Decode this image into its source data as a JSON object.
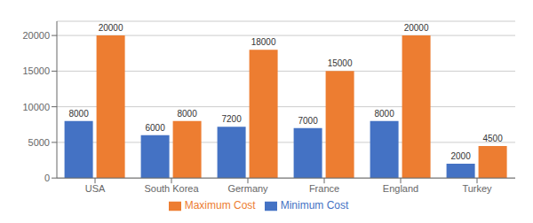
{
  "chart_data": {
    "type": "bar",
    "categories": [
      "USA",
      "South Korea",
      "Germany",
      "France",
      "England",
      "Turkey"
    ],
    "series": [
      {
        "name": "Minimum Cost",
        "color": "#4472C4",
        "values": [
          8000,
          6000,
          7200,
          7000,
          8000,
          2000
        ]
      },
      {
        "name": "Maximum Cost",
        "color": "#ED7D31",
        "values": [
          20000,
          8000,
          18000,
          15000,
          20000,
          4500
        ]
      }
    ],
    "ylim": [
      0,
      22000
    ],
    "yticks": [
      0,
      5000,
      10000,
      15000,
      20000
    ],
    "grid": true,
    "legend": "bottom",
    "data_labels": true
  }
}
